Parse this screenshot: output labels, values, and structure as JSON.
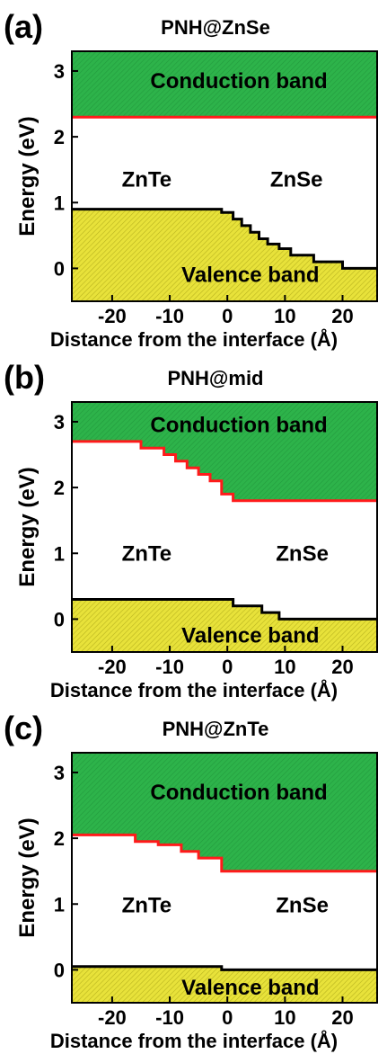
{
  "chart_data": [
    {
      "type": "area",
      "panel_label": "(a)",
      "title": "PNH@ZnSe",
      "xlabel": "Distance from the interface (Å)",
      "ylabel": "Energy (eV)",
      "xlim": [
        -27,
        26
      ],
      "ylim": [
        -0.5,
        3.3
      ],
      "xticks": [
        -20,
        -10,
        0,
        10,
        20
      ],
      "xtick_labels": [
        "-20",
        "-10",
        "0",
        "10",
        "20"
      ],
      "yticks": [
        0,
        1,
        2,
        3
      ],
      "ytick_labels": [
        "0",
        "1",
        "2",
        "3"
      ],
      "grid": false,
      "series": [
        {
          "name": "Conduction band",
          "color": "#2db34a",
          "edge_color": "#ff1a1a",
          "x": [
            -27,
            26
          ],
          "y": [
            2.3,
            2.3
          ]
        },
        {
          "name": "Valence band",
          "color": "#e8e23a",
          "edge_color": "#000000",
          "x": [
            -27,
            -1,
            -1,
            1,
            1,
            2.5,
            2.5,
            4,
            4,
            5.5,
            5.5,
            7,
            7,
            9,
            9,
            11,
            11,
            15,
            15,
            20,
            20,
            26
          ],
          "y": [
            0.9,
            0.9,
            0.85,
            0.85,
            0.75,
            0.75,
            0.65,
            0.65,
            0.55,
            0.55,
            0.45,
            0.45,
            0.37,
            0.37,
            0.3,
            0.3,
            0.2,
            0.2,
            0.1,
            0.1,
            0.0,
            0.0
          ]
        }
      ],
      "region_labels": [
        {
          "text": "Conduction band",
          "x": 2,
          "y": 2.85
        },
        {
          "text": "ZnTe",
          "x": -14,
          "y": 1.35
        },
        {
          "text": "ZnSe",
          "x": 12,
          "y": 1.35
        },
        {
          "text": "Valence band",
          "x": 4,
          "y": -0.1
        }
      ]
    },
    {
      "type": "area",
      "panel_label": "(b)",
      "title": "PNH@mid",
      "xlabel": "Distance from the interface (Å)",
      "ylabel": "Energy (eV)",
      "xlim": [
        -27,
        26
      ],
      "ylim": [
        -0.5,
        3.3
      ],
      "xticks": [
        -20,
        -10,
        0,
        10,
        20
      ],
      "xtick_labels": [
        "-20",
        "-10",
        "0",
        "10",
        "20"
      ],
      "yticks": [
        0,
        1,
        2,
        3
      ],
      "ytick_labels": [
        "0",
        "1",
        "2",
        "3"
      ],
      "grid": false,
      "series": [
        {
          "name": "Conduction band",
          "color": "#2db34a",
          "edge_color": "#ff1a1a",
          "x": [
            -27,
            -15,
            -15,
            -11,
            -11,
            -9,
            -9,
            -7,
            -7,
            -5,
            -5,
            -3,
            -3,
            -1,
            -1,
            1,
            1,
            26
          ],
          "y": [
            2.7,
            2.7,
            2.6,
            2.6,
            2.5,
            2.5,
            2.4,
            2.4,
            2.3,
            2.3,
            2.2,
            2.2,
            2.1,
            2.1,
            1.9,
            1.9,
            1.8,
            1.8
          ]
        },
        {
          "name": "Valence band",
          "color": "#e8e23a",
          "edge_color": "#000000",
          "x": [
            -27,
            1,
            1,
            6,
            6,
            9,
            9,
            26
          ],
          "y": [
            0.3,
            0.3,
            0.2,
            0.2,
            0.1,
            0.1,
            0.0,
            0.0
          ]
        }
      ],
      "region_labels": [
        {
          "text": "Conduction band",
          "x": 2,
          "y": 2.95
        },
        {
          "text": "ZnTe",
          "x": -14,
          "y": 1.0
        },
        {
          "text": "ZnSe",
          "x": 13,
          "y": 1.0
        },
        {
          "text": "Valence band",
          "x": 4,
          "y": -0.25
        }
      ]
    },
    {
      "type": "area",
      "panel_label": "(c)",
      "title": "PNH@ZnTe",
      "xlabel": "Distance from the interface (Å)",
      "ylabel": "Energy (eV)",
      "xlim": [
        -27,
        26
      ],
      "ylim": [
        -0.5,
        3.3
      ],
      "xticks": [
        -20,
        -10,
        0,
        10,
        20
      ],
      "xtick_labels": [
        "-20",
        "-10",
        "0",
        "10",
        "20"
      ],
      "yticks": [
        0,
        1,
        2,
        3
      ],
      "ytick_labels": [
        "0",
        "1",
        "2",
        "3"
      ],
      "grid": false,
      "series": [
        {
          "name": "Conduction band",
          "color": "#2db34a",
          "edge_color": "#ff1a1a",
          "x": [
            -27,
            -16,
            -16,
            -12,
            -12,
            -8,
            -8,
            -5,
            -5,
            -1,
            -1,
            26
          ],
          "y": [
            2.05,
            2.05,
            1.95,
            1.95,
            1.9,
            1.9,
            1.8,
            1.8,
            1.7,
            1.7,
            1.5,
            1.5
          ]
        },
        {
          "name": "Valence band",
          "color": "#e8e23a",
          "edge_color": "#000000",
          "x": [
            -27,
            -1,
            -1,
            26
          ],
          "y": [
            0.05,
            0.05,
            0.0,
            0.0
          ]
        }
      ],
      "region_labels": [
        {
          "text": "Conduction band",
          "x": 2,
          "y": 2.7
        },
        {
          "text": "ZnTe",
          "x": -14,
          "y": 0.98
        },
        {
          "text": "ZnSe",
          "x": 13,
          "y": 0.98
        },
        {
          "text": "Valence band",
          "x": 4,
          "y": -0.27
        }
      ]
    }
  ]
}
